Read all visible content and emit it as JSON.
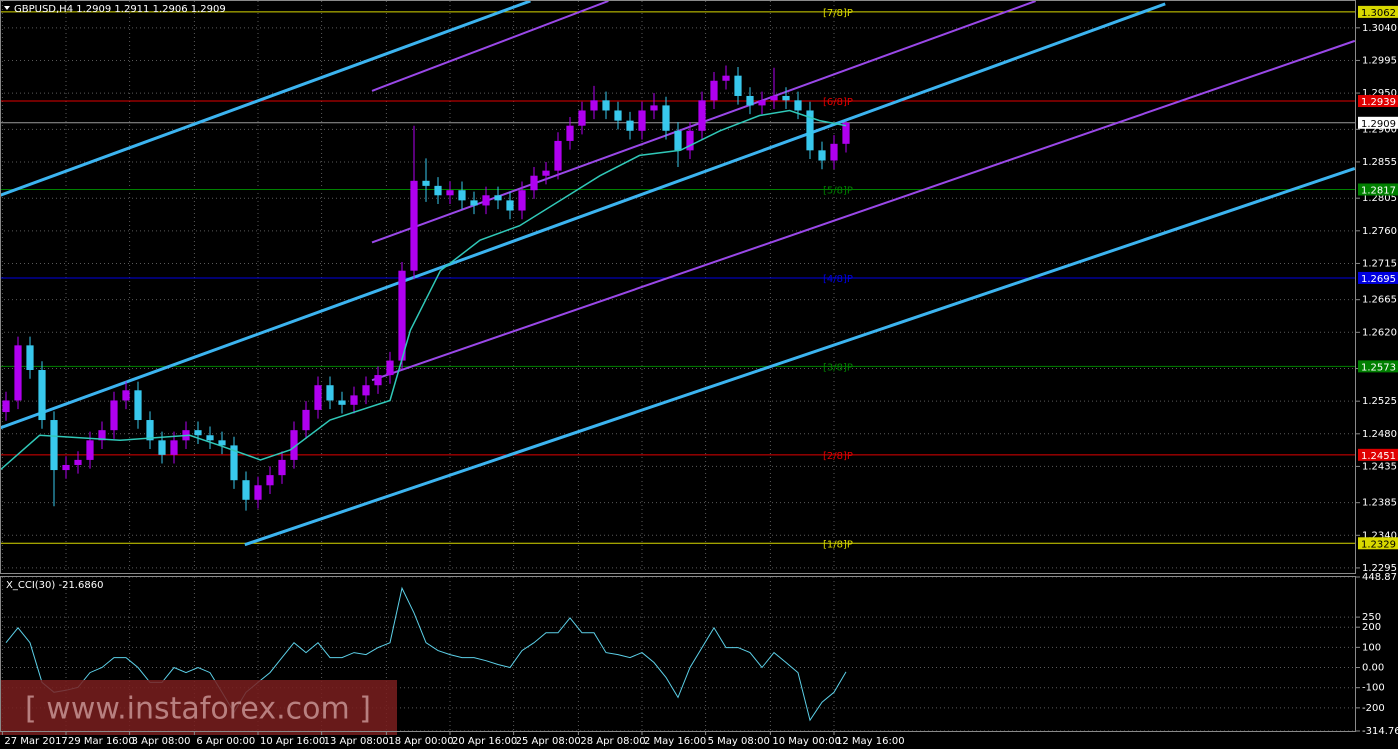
{
  "chart_data": [
    {
      "type": "candlestick",
      "title": "GBPUSD,H4  1.2909 1.2911 1.2906 1.2909",
      "up_color": "#b000f0",
      "down_color": "#38c8ec",
      "open": [
        1.251,
        1.2526,
        1.2602,
        1.2568,
        1.2499,
        1.243,
        1.2437,
        1.2444,
        1.2471,
        1.2485,
        1.2526,
        1.254,
        1.2499,
        1.2471,
        1.2451,
        1.2471,
        1.2485,
        1.2478,
        1.2471,
        1.2464,
        1.2416,
        1.2389,
        1.2409,
        1.2423,
        1.2444,
        1.2485,
        1.2513,
        1.2547,
        1.2526,
        1.252,
        1.2533,
        1.2547,
        1.2561,
        1.2581,
        1.2705,
        1.2829,
        1.2822,
        1.2809,
        1.2816,
        1.2802,
        1.2795,
        1.2809,
        1.2802,
        1.2788,
        1.2816,
        1.2836,
        1.2843,
        1.2884,
        1.2905,
        1.2926,
        1.294,
        1.2926,
        1.2912,
        1.2898,
        1.2926,
        1.2933,
        1.2898,
        1.2871,
        1.2898,
        1.294,
        1.2967,
        1.2974,
        1.2946,
        1.2933,
        1.294,
        1.2946,
        1.294,
        1.2926,
        1.2871,
        1.2857,
        1.288
      ],
      "high": [
        1.2538,
        1.2614,
        1.2614,
        1.258,
        1.2511,
        1.2449,
        1.2456,
        1.2483,
        1.2497,
        1.2538,
        1.2552,
        1.2552,
        1.2511,
        1.2483,
        1.2483,
        1.2497,
        1.2497,
        1.249,
        1.2483,
        1.2476,
        1.2428,
        1.2421,
        1.2435,
        1.2456,
        1.2497,
        1.2525,
        1.2559,
        1.2559,
        1.2538,
        1.2545,
        1.2559,
        1.2573,
        1.2593,
        1.2717,
        1.2905,
        1.286,
        1.2834,
        1.2828,
        1.2828,
        1.2814,
        1.2821,
        1.2821,
        1.2814,
        1.2828,
        1.2848,
        1.2855,
        1.2896,
        1.2917,
        1.2938,
        1.296,
        1.2952,
        1.2938,
        1.2924,
        1.2938,
        1.295,
        1.2945,
        1.291,
        1.291,
        1.2952,
        1.2979,
        1.2988,
        1.2986,
        1.2958,
        1.2952,
        1.2985,
        1.2958,
        1.2952,
        1.2938,
        1.2883,
        1.2892,
        1.2911
      ],
      "low": [
        1.2498,
        1.2514,
        1.2556,
        1.2487,
        1.238,
        1.2418,
        1.2425,
        1.2432,
        1.2459,
        1.2473,
        1.2514,
        1.2487,
        1.2459,
        1.2439,
        1.2439,
        1.2459,
        1.2466,
        1.2459,
        1.2452,
        1.2404,
        1.2374,
        1.2377,
        1.2397,
        1.2411,
        1.2432,
        1.2473,
        1.2501,
        1.2514,
        1.2508,
        1.2508,
        1.2521,
        1.2535,
        1.2549,
        1.2569,
        1.2693,
        1.28,
        1.2797,
        1.2797,
        1.279,
        1.2783,
        1.2783,
        1.279,
        1.2776,
        1.2776,
        1.2804,
        1.2824,
        1.2831,
        1.2872,
        1.2893,
        1.2914,
        1.2914,
        1.29,
        1.2886,
        1.2886,
        1.2914,
        1.2886,
        1.2848,
        1.2859,
        1.2886,
        1.2928,
        1.2955,
        1.2934,
        1.2921,
        1.2921,
        1.2928,
        1.2928,
        1.2914,
        1.2859,
        1.2845,
        1.2845,
        1.2868
      ],
      "close": [
        1.2526,
        1.2602,
        1.2568,
        1.2499,
        1.243,
        1.2437,
        1.2444,
        1.2471,
        1.2485,
        1.2526,
        1.254,
        1.2499,
        1.2471,
        1.2451,
        1.2471,
        1.2485,
        1.2478,
        1.2471,
        1.2464,
        1.2416,
        1.2389,
        1.2409,
        1.2423,
        1.2444,
        1.2485,
        1.2513,
        1.2547,
        1.2526,
        1.252,
        1.2533,
        1.2547,
        1.2561,
        1.2581,
        1.2705,
        1.2829,
        1.2822,
        1.2809,
        1.2816,
        1.2802,
        1.2795,
        1.2809,
        1.2802,
        1.2788,
        1.2816,
        1.2836,
        1.2843,
        1.2884,
        1.2905,
        1.2926,
        1.294,
        1.2926,
        1.2912,
        1.2898,
        1.2926,
        1.2933,
        1.2898,
        1.2871,
        1.2898,
        1.294,
        1.2967,
        1.2974,
        1.2946,
        1.2933,
        1.294,
        1.2946,
        1.294,
        1.2926,
        1.2871,
        1.2857,
        1.288,
        1.2909
      ],
      "ma": {
        "color": "#30c8b8",
        "x": [
          -0.5,
          2.8,
          9.5,
          15.3,
          17.8,
          21.2,
          23.7,
          27,
          32,
          33.7,
          36.2,
          39.5,
          42.8,
          46.2,
          49.5,
          52.8,
          56.2,
          59.5,
          62.8,
          65.3,
          67.8,
          70
        ],
        "values": [
          1.243,
          1.2478,
          1.2471,
          1.2478,
          1.2464,
          1.2444,
          1.2458,
          1.2499,
          1.2526,
          1.2623,
          1.2705,
          1.2747,
          1.2767,
          1.2802,
          1.2836,
          1.2864,
          1.2871,
          1.2898,
          1.2919,
          1.2926,
          1.2912,
          1.2905
        ]
      },
      "channels": [
        {
          "color": "#3cb4f0",
          "x": [
            -0.5,
            43.7
          ],
          "y": [
            1.2809,
            1.3077
          ]
        },
        {
          "color": "#3cb4f0",
          "x": [
            -0.5,
            96.6
          ],
          "y": [
            1.2488,
            1.3073
          ]
        },
        {
          "color": "#3cb4f0",
          "x": [
            19.9,
            112.4
          ],
          "y": [
            1.2327,
            1.2846
          ]
        },
        {
          "color": "#9a48e8",
          "x": [
            30.5,
            50.2
          ],
          "y": [
            1.2953,
            1.3077
          ]
        },
        {
          "color": "#9a48e8",
          "x": [
            30.5,
            85.8
          ],
          "y": [
            1.2744,
            1.3077
          ]
        },
        {
          "color": "#9a48e8",
          "x": [
            30.5,
            112.4
          ],
          "y": [
            1.2554,
            1.3022
          ]
        }
      ],
      "levels": [
        {
          "label": "[7/8]P",
          "value": 1.3062,
          "color": "#d8d800"
        },
        {
          "label": "[6/8]P",
          "value": 1.2939,
          "color": "#e00000"
        },
        {
          "label": "[5/8]P",
          "value": 1.2817,
          "color": "#008000"
        },
        {
          "label": "[4/8]P",
          "value": 1.2695,
          "color": "#0000e0"
        },
        {
          "label": "[3/8]P",
          "value": 1.2573,
          "color": "#008000"
        },
        {
          "label": "[2/8]P",
          "value": 1.2451,
          "color": "#e00000"
        },
        {
          "label": "[1/8]P",
          "value": 1.2329,
          "color": "#d8d800"
        }
      ],
      "current_price": 1.2909,
      "xlim": [
        -0.5,
        112.5
      ],
      "xticks": [
        {
          "value": -0.3,
          "label": "27 Mar 2017"
        },
        {
          "value": 5,
          "label": "29 Mar 16:00"
        },
        {
          "value": 10.3,
          "label": "3 Apr 08:00"
        },
        {
          "value": 15.7,
          "label": "6 Apr 00:00"
        },
        {
          "value": 21,
          "label": "10 Apr 16:00"
        },
        {
          "value": 26.3,
          "label": "13 Apr 08:00"
        },
        {
          "value": 31.7,
          "label": "18 Apr 00:00"
        },
        {
          "value": 37,
          "label": "20 Apr 16:00"
        },
        {
          "value": 42.3,
          "label": "25 Apr 08:00"
        },
        {
          "value": 47.7,
          "label": "28 Apr 08:00"
        },
        {
          "value": 53,
          "label": "2 May 16:00"
        },
        {
          "value": 58.3,
          "label": "5 May 08:00"
        },
        {
          "value": 63.7,
          "label": "10 May 00:00"
        },
        {
          "value": 69,
          "label": "12 May 16:00"
        }
      ],
      "ylim": [
        1.2288,
        1.3077
      ],
      "yticks": [
        {
          "value": 1.304,
          "label": "1.3040"
        },
        1.2995,
        {
          "value": 1.295,
          "label": "1.2950"
        },
        {
          "value": 1.29,
          "label": "1.2900"
        },
        1.2855,
        1.2805,
        {
          "value": 1.276,
          "label": "1.2760"
        },
        1.2715,
        1.2665,
        {
          "value": 1.262,
          "label": "1.2620"
        },
        {
          "value": 1.257,
          "label": "1.2570"
        },
        1.2525,
        {
          "value": 1.248,
          "label": "1.2480"
        },
        1.2435,
        1.2385,
        {
          "value": 1.234,
          "label": "1.2340"
        },
        1.2295
      ],
      "grid": true
    },
    {
      "type": "line",
      "title": "X_CCI(30) -21.6860",
      "color": "#5cd0e8",
      "values": [
        123,
        197,
        123,
        -74,
        -123,
        -113,
        -98,
        -25,
        0,
        49,
        49,
        0,
        -74,
        -74,
        0,
        -25,
        0,
        -25,
        -123,
        -222,
        -123,
        -74,
        -25,
        49,
        123,
        74,
        123,
        49,
        49,
        74,
        64,
        99,
        123,
        394,
        271,
        123,
        84,
        64,
        49,
        49,
        34,
        15,
        0,
        84,
        123,
        172,
        172,
        246,
        172,
        172,
        74,
        64,
        49,
        74,
        25,
        -49,
        -148,
        0,
        99,
        197,
        99,
        99,
        74,
        0,
        74,
        25,
        -25,
        -261,
        -172,
        -123,
        -21.686
      ],
      "ylim": [
        -314.76,
        448.8716
      ],
      "yticks": [
        448.8716,
        250,
        200,
        100,
        {
          "value": 0,
          "label": "0.00"
        },
        -100,
        -200,
        {
          "value": -314.76,
          "label": "-314.760"
        }
      ],
      "grid": true
    }
  ],
  "watermark": "[ www.instaforex.com ]"
}
